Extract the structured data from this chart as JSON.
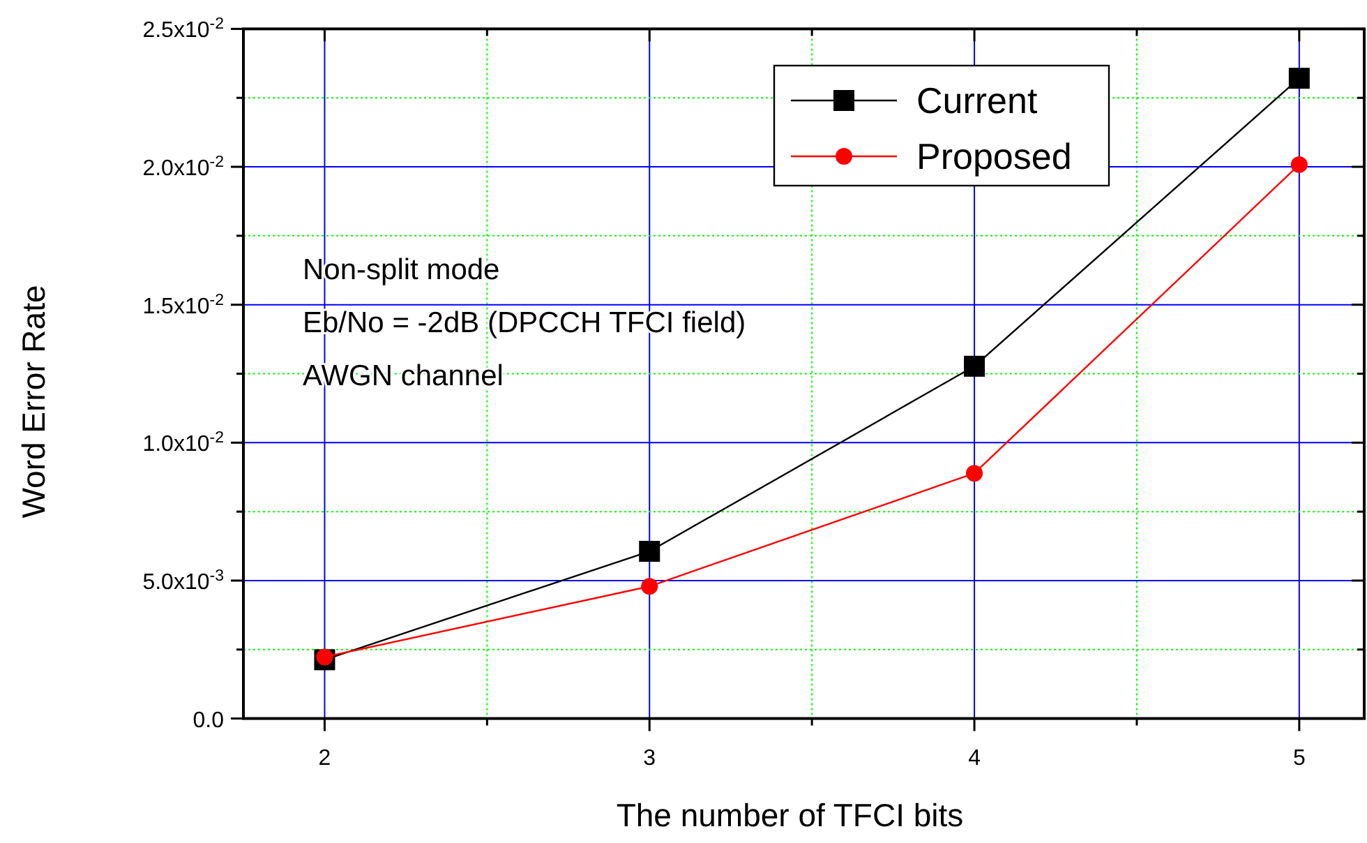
{
  "chart_data": {
    "type": "line",
    "xlabel": "The number of TFCI bits",
    "ylabel": "Word Error Rate",
    "x": [
      2,
      3,
      4,
      5
    ],
    "series": [
      {
        "name": "Current",
        "color": "#000000",
        "marker": "square",
        "values": [
          0.00213,
          0.00606,
          0.01277,
          0.02321
        ]
      },
      {
        "name": "Proposed",
        "color": "#ff0000",
        "marker": "circle",
        "values": [
          0.00223,
          0.00479,
          0.00889,
          0.02008
        ]
      }
    ],
    "xlim": [
      1.75,
      5.2
    ],
    "xticks": [
      2,
      {
        "value": 2.5,
        "label": null
      },
      3,
      {
        "value": 3.5,
        "label": null
      },
      4,
      {
        "value": 4.5,
        "label": null
      },
      5
    ],
    "ylim": [
      0,
      0.025
    ],
    "yticks": [
      {
        "value": 0,
        "label": "0.0"
      },
      {
        "value": 0.0025,
        "label": null
      },
      {
        "value": 0.005,
        "label": "5.0x10$^{-3}$"
      },
      {
        "value": 0.0075,
        "label": null
      },
      {
        "value": 0.01,
        "label": "1.0x10$^{-2}$"
      },
      {
        "value": 0.0125,
        "label": null
      },
      {
        "value": 0.015,
        "label": "1.5x10$^{-2}$"
      },
      {
        "value": 0.0175,
        "label": null
      },
      {
        "value": 0.02,
        "label": "2.0x10$^{-2}$"
      },
      {
        "value": 0.0225,
        "label": null
      },
      {
        "value": 0.025,
        "label": "2.5x10$^{-2}$"
      }
    ],
    "annotations": [
      "Non-split mode",
      "Eb/No = -2dB (DPCCH TFCI field)",
      "AWGN channel"
    ],
    "grid": true,
    "legend": "top right",
    "line_style": "solid"
  }
}
